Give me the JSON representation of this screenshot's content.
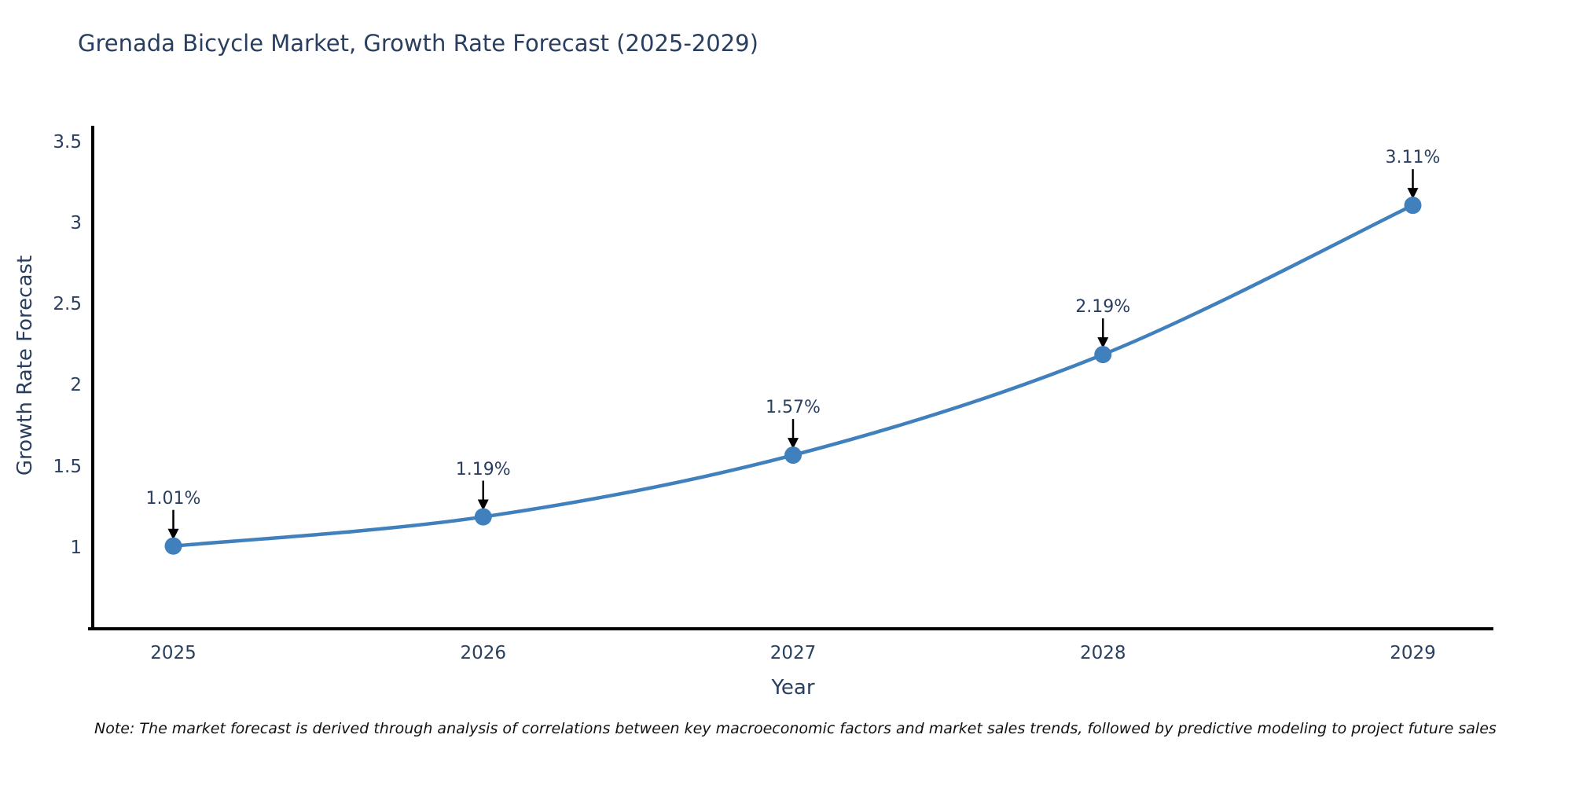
{
  "page": {
    "title": "Grenada Bicycle Market, Growth Rate Forecast (2025-2029)",
    "note": "Note: The market forecast is derived through analysis of correlations between key macroeconomic factors and market sales trends, followed by predictive modeling to project future sales"
  },
  "chart_data": {
    "type": "line",
    "title": "Grenada Bicycle Market, Growth Rate Forecast (2025-2029)",
    "xlabel": "Year",
    "ylabel": "Growth Rate Forecast",
    "x": [
      2025,
      2026,
      2027,
      2028,
      2029
    ],
    "y": [
      1.01,
      1.19,
      1.57,
      2.19,
      3.11
    ],
    "annotations": [
      "1.01%",
      "1.19%",
      "1.57%",
      "2.19%",
      "3.11%"
    ],
    "xtick_labels": [
      "2025",
      "2026",
      "2027",
      "2028",
      "2029"
    ],
    "yticks": [
      1,
      1.5,
      2,
      2.5,
      3,
      3.5
    ],
    "ytick_labels": [
      "1",
      "1.5",
      "2",
      "2.5",
      "3",
      "3.5"
    ],
    "xlim": [
      2024.74,
      2029.26
    ],
    "ylim": [
      0.5,
      3.6
    ],
    "grid": false,
    "legend": "none",
    "line_shape": "spline",
    "colors": {
      "line": "#4080bd",
      "marker": "#4080bd",
      "axis": "#000000",
      "arrow": "#000000",
      "text": "#2a3f5f",
      "note_text": "#111111"
    }
  }
}
